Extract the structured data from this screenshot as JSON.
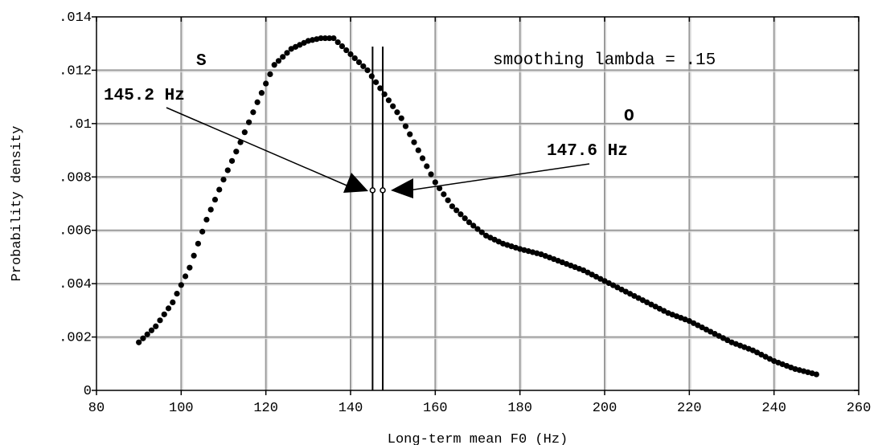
{
  "chart_data": {
    "type": "scatter",
    "xlabel": "Long-term mean F0 (Hz)",
    "ylabel": "Probability density",
    "xlim": [
      80,
      260
    ],
    "ylim": [
      0,
      0.014
    ],
    "x_ticks": [
      80,
      100,
      120,
      140,
      160,
      180,
      200,
      220,
      240,
      260
    ],
    "x_tick_labels": [
      "80",
      "100",
      "120",
      "140",
      "160",
      "180",
      "200",
      "220",
      "240",
      "260"
    ],
    "y_ticks": [
      0,
      0.002,
      0.004,
      0.006,
      0.008,
      0.01,
      0.012,
      0.014
    ],
    "y_tick_labels": [
      "0",
      ".002",
      ".004",
      ".006",
      ".008",
      ".01",
      ".012",
      ".014"
    ],
    "grid": true,
    "series": [
      {
        "marker": "filled-circle",
        "color": "#000000",
        "points": [
          [
            90,
            0.0018
          ],
          [
            94,
            0.0024
          ],
          [
            98,
            0.0033
          ],
          [
            102,
            0.0046
          ],
          [
            106,
            0.0064
          ],
          [
            110,
            0.0079
          ],
          [
            114,
            0.0093
          ],
          [
            118,
            0.0108
          ],
          [
            122,
            0.0122
          ],
          [
            126,
            0.0128
          ],
          [
            130,
            0.0131
          ],
          [
            133,
            0.0132
          ],
          [
            136,
            0.0132
          ],
          [
            140,
            0.0126
          ],
          [
            144,
            0.012
          ],
          [
            148,
            0.0111
          ],
          [
            152,
            0.0102
          ],
          [
            156,
            0.009
          ],
          [
            160,
            0.0078
          ],
          [
            164,
            0.0069
          ],
          [
            168,
            0.0063
          ],
          [
            172,
            0.0058
          ],
          [
            176,
            0.0055
          ],
          [
            180,
            0.0053
          ],
          [
            185,
            0.0051
          ],
          [
            190,
            0.0048
          ],
          [
            195,
            0.0045
          ],
          [
            200,
            0.0041
          ],
          [
            205,
            0.0037
          ],
          [
            210,
            0.0033
          ],
          [
            215,
            0.0029
          ],
          [
            220,
            0.0026
          ],
          [
            225,
            0.0022
          ],
          [
            230,
            0.0018
          ],
          [
            235,
            0.0015
          ],
          [
            240,
            0.0011
          ],
          [
            245,
            0.0008
          ],
          [
            250,
            0.0006
          ]
        ]
      }
    ],
    "vlines": [
      145.2,
      147.6
    ],
    "annotations": {
      "s_label": "S",
      "s_value": "145.2 Hz",
      "o_label": "O",
      "o_value": "147.6 Hz",
      "smoothing": "smoothing lambda = .15"
    },
    "markers": [
      [
        145.2,
        0.0075
      ],
      [
        147.6,
        0.0075
      ]
    ]
  }
}
